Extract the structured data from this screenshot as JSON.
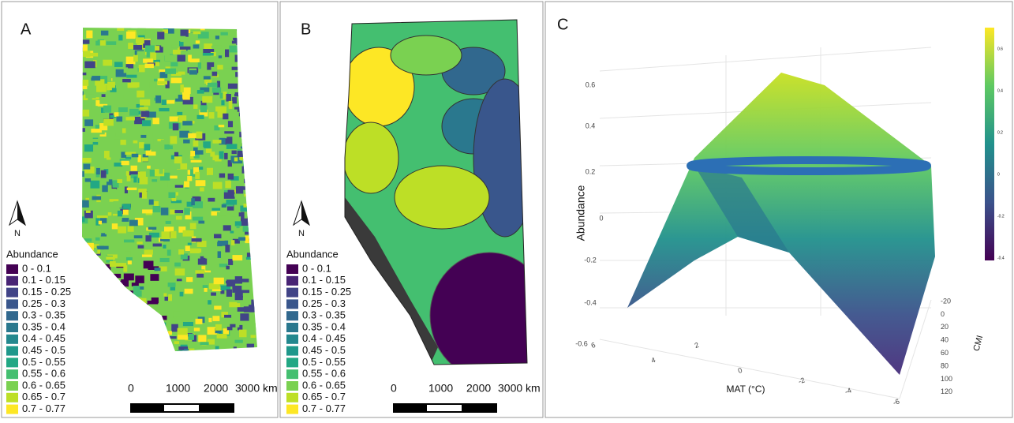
{
  "panels": [
    {
      "label": "A",
      "north": "N",
      "legend": {
        "title": "Abundance",
        "items": [
          {
            "label": "0 - 0.1",
            "color": "#440154"
          },
          {
            "label": "0.1 - 0.15",
            "color": "#482475"
          },
          {
            "label": "0.15 - 0.25",
            "color": "#414487"
          },
          {
            "label": "0.25 - 0.3",
            "color": "#39568c"
          },
          {
            "label": "0.3 - 0.35",
            "color": "#31688e"
          },
          {
            "label": "0.35 - 0.4",
            "color": "#2a788e"
          },
          {
            "label": "0.4 - 0.45",
            "color": "#23888e"
          },
          {
            "label": "0.45 - 0.5",
            "color": "#1f988b"
          },
          {
            "label": "0.5 - 0.55",
            "color": "#22a884"
          },
          {
            "label": "0.55 - 0.6",
            "color": "#44bf70"
          },
          {
            "label": "0.6 - 0.65",
            "color": "#7ad151"
          },
          {
            "label": "0.65 - 0.7",
            "color": "#bddf26"
          },
          {
            "label": "0.7 - 0.77",
            "color": "#fde725"
          }
        ]
      },
      "scale": [
        "0",
        "1000",
        "2000",
        "3000 km"
      ]
    },
    {
      "label": "B",
      "north": "N",
      "legend": {
        "title": "Abundance",
        "items": [
          {
            "label": "0 - 0.1",
            "color": "#440154"
          },
          {
            "label": "0.1 - 0.15",
            "color": "#482475"
          },
          {
            "label": "0.15 - 0.25",
            "color": "#414487"
          },
          {
            "label": "0.25 - 0.3",
            "color": "#39568c"
          },
          {
            "label": "0.3 - 0.35",
            "color": "#31688e"
          },
          {
            "label": "0.35 - 0.4",
            "color": "#2a788e"
          },
          {
            "label": "0.4 - 0.45",
            "color": "#23888e"
          },
          {
            "label": "0.45 - 0.5",
            "color": "#1f988b"
          },
          {
            "label": "0.5 - 0.55",
            "color": "#22a884"
          },
          {
            "label": "0.55 - 0.6",
            "color": "#44bf70"
          },
          {
            "label": "0.6 - 0.65",
            "color": "#7ad151"
          },
          {
            "label": "0.65 - 0.7",
            "color": "#bddf26"
          },
          {
            "label": "0.7 - 0.77",
            "color": "#fde725"
          }
        ]
      },
      "scale": [
        "0",
        "1000",
        "2000",
        "3000 km"
      ]
    },
    {
      "label": "C",
      "z_title": "Abundance",
      "x_title": "MAT (°C)",
      "y_title": "CMI",
      "z_ticks": [
        "0.6",
        "0.4",
        "0.2",
        "0",
        "-0.2",
        "-0.4",
        "-0.6"
      ],
      "x_ticks": [
        "6",
        "4",
        "2",
        "0",
        "-2",
        "-4",
        "-6"
      ],
      "y_ticks": [
        "-20",
        "0",
        "20",
        "40",
        "60",
        "80",
        "100",
        "120"
      ],
      "colorbar_ticks": [
        "0.6",
        "0.4",
        "0.2",
        "0",
        "-0.2",
        "-0.4"
      ]
    }
  ]
}
